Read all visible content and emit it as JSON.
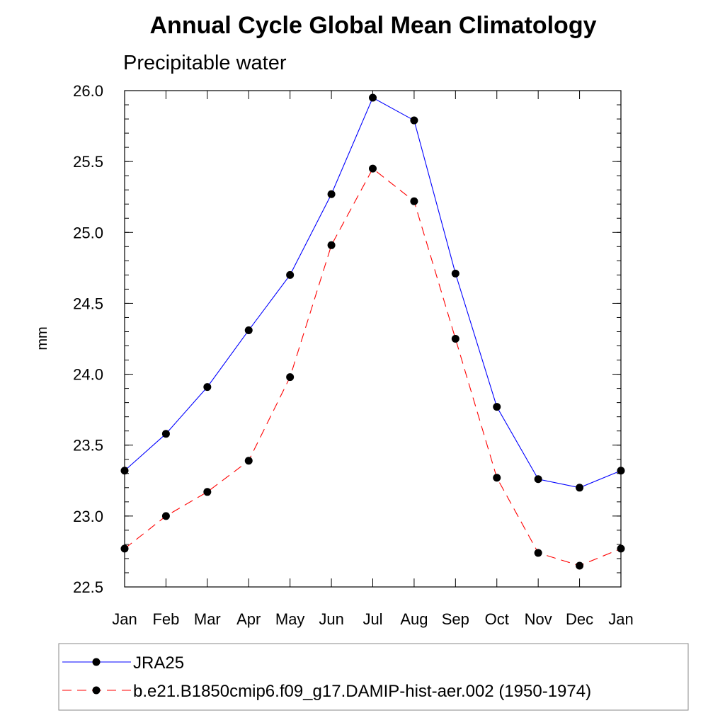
{
  "chart_data": {
    "type": "line",
    "title": "Annual Cycle Global Mean Climatology",
    "subtitle": "Precipitable water",
    "xlabel": "",
    "ylabel": "mm",
    "categories": [
      "Jan",
      "Feb",
      "Mar",
      "Apr",
      "May",
      "Jun",
      "Jul",
      "Aug",
      "Sep",
      "Oct",
      "Nov",
      "Dec",
      "Jan"
    ],
    "ylim": [
      22.5,
      26.0
    ],
    "yticks": [
      "22.5",
      "23.0",
      "23.5",
      "24.0",
      "24.5",
      "25.0",
      "25.5",
      "26.0"
    ],
    "series": [
      {
        "name": "JRA25",
        "color": "#0000ff",
        "style": "solid",
        "marker": "filled-circle",
        "values": [
          23.32,
          23.58,
          23.91,
          24.31,
          24.7,
          25.27,
          25.95,
          25.79,
          24.71,
          23.77,
          23.26,
          23.2,
          23.32
        ]
      },
      {
        "name": "b.e21.B1850cmip6.f09_g17.DAMIP-hist-aer.002 (1950-1974)",
        "color": "#ff0000",
        "style": "dashed",
        "marker": "filled-circle",
        "values": [
          22.77,
          23.0,
          23.17,
          23.39,
          23.98,
          24.91,
          25.45,
          25.22,
          24.25,
          23.27,
          22.74,
          22.65,
          22.77
        ]
      }
    ],
    "legend_position": "bottom"
  }
}
